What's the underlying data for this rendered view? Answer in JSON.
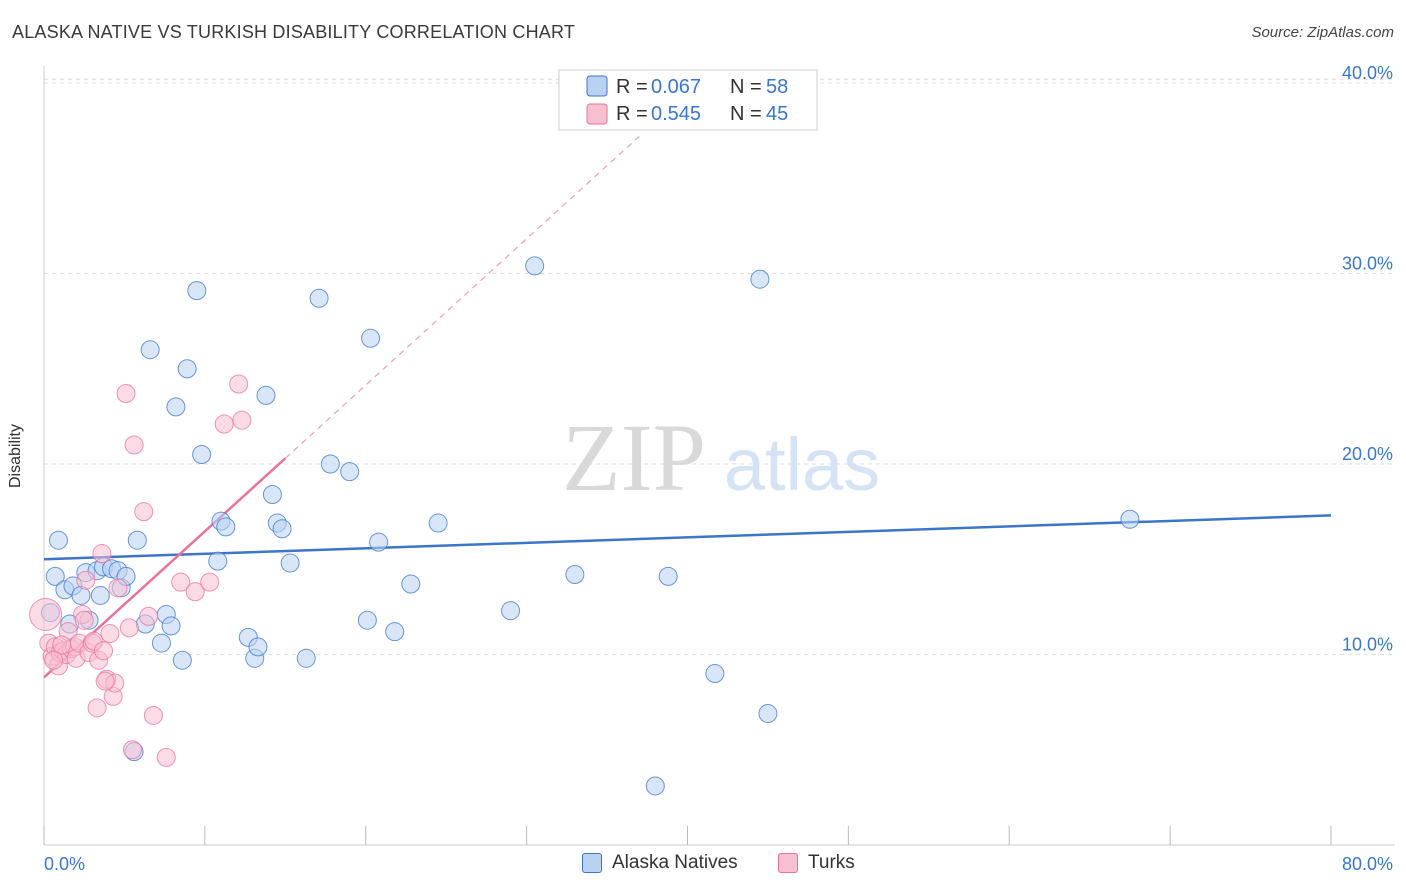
{
  "title": "ALASKA NATIVE VS TURKISH DISABILITY CORRELATION CHART",
  "source": "Source: ZipAtlas.com",
  "watermark": {
    "zip": "ZIP",
    "atlas": "atlas"
  },
  "colors": {
    "blue": "#3b76c9",
    "blue_fill": "#b9d2f2",
    "pink": "#e8729c",
    "pink_fill": "#f7c0d1"
  },
  "legend": {
    "rows": [
      {
        "r_label": "R = ",
        "r_value": "0.067",
        "n_label": "N = ",
        "n_value": "58"
      },
      {
        "r_label": "R = ",
        "r_value": "0.545",
        "n_label": "N = ",
        "n_value": "45"
      }
    ]
  },
  "bottom_legend": [
    "Alaska Natives",
    "Turks"
  ],
  "chart_data": {
    "type": "scatter",
    "title": "ALASKA NATIVE VS TURKISH DISABILITY CORRELATION CHART",
    "xlabel": "",
    "ylabel": "Disability",
    "xlim": [
      0,
      80
    ],
    "ylim": [
      0,
      40
    ],
    "x_tick_labels": [
      "0.0%",
      "80.0%"
    ],
    "y_tick_labels": [
      {
        "value": 10,
        "label": "10.0%"
      },
      {
        "value": 20,
        "label": "20.0%"
      },
      {
        "value": 30,
        "label": "30.0%"
      },
      {
        "value": 40,
        "label": "40.0%"
      }
    ],
    "series": [
      {
        "name": "Alaska Natives",
        "color": "#3b76c9",
        "r": 0.067,
        "n": 58,
        "trend": {
          "x0": 0,
          "y0": 15.0,
          "x1": 80,
          "y1": 17.3,
          "style": "solid"
        },
        "points": [
          [
            0.4,
            12.2
          ],
          [
            0.7,
            14.1
          ],
          [
            0.9,
            16.0
          ],
          [
            1.3,
            13.4
          ],
          [
            1.6,
            11.6
          ],
          [
            1.8,
            13.6
          ],
          [
            2.3,
            13.1
          ],
          [
            2.6,
            14.3
          ],
          [
            2.8,
            11.8
          ],
          [
            3.3,
            14.4
          ],
          [
            3.5,
            13.1
          ],
          [
            3.7,
            14.6
          ],
          [
            4.2,
            14.5
          ],
          [
            4.6,
            14.4
          ],
          [
            4.8,
            13.5
          ],
          [
            5.1,
            14.1
          ],
          [
            5.6,
            4.9
          ],
          [
            5.8,
            16.0
          ],
          [
            6.3,
            11.6
          ],
          [
            6.6,
            26.0
          ],
          [
            7.3,
            10.6
          ],
          [
            7.6,
            12.1
          ],
          [
            7.9,
            11.5
          ],
          [
            8.2,
            23.0
          ],
          [
            8.6,
            9.7
          ],
          [
            8.9,
            25.0
          ],
          [
            9.5,
            29.1
          ],
          [
            9.8,
            20.5
          ],
          [
            10.8,
            14.9
          ],
          [
            11.0,
            17.0
          ],
          [
            11.3,
            16.7
          ],
          [
            12.7,
            10.9
          ],
          [
            13.1,
            9.8
          ],
          [
            13.3,
            10.4
          ],
          [
            13.8,
            23.6
          ],
          [
            14.2,
            18.4
          ],
          [
            14.5,
            16.9
          ],
          [
            14.8,
            16.6
          ],
          [
            15.3,
            14.8
          ],
          [
            16.3,
            9.8
          ],
          [
            17.1,
            28.7
          ],
          [
            17.8,
            20.0
          ],
          [
            19.0,
            19.6
          ],
          [
            20.1,
            11.8
          ],
          [
            20.3,
            26.6
          ],
          [
            20.8,
            15.9
          ],
          [
            21.8,
            11.2
          ],
          [
            22.8,
            13.7
          ],
          [
            24.5,
            16.9
          ],
          [
            29.0,
            12.3
          ],
          [
            30.5,
            30.4
          ],
          [
            33.0,
            14.2
          ],
          [
            38.0,
            3.1
          ],
          [
            38.8,
            14.1
          ],
          [
            41.7,
            9.0
          ],
          [
            44.5,
            29.7
          ],
          [
            45.0,
            6.9
          ],
          [
            67.5,
            17.1
          ]
        ]
      },
      {
        "name": "Turks",
        "color": "#e8729c",
        "r": 0.545,
        "n": 45,
        "trend": {
          "x0": 0,
          "y0": 8.8,
          "x1": 15.0,
          "y1": 20.3,
          "style": "solid",
          "dash_x1": 37.0,
          "dash_y1": 37.2
        },
        "points": [
          [
            0.1,
            12.1
          ],
          [
            0.3,
            10.6
          ],
          [
            0.5,
            9.9
          ],
          [
            0.7,
            10.4
          ],
          [
            0.9,
            9.4
          ],
          [
            1.0,
            10.1
          ],
          [
            1.2,
            10.2
          ],
          [
            1.4,
            10.0
          ],
          [
            1.5,
            11.2
          ],
          [
            1.7,
            10.3
          ],
          [
            1.9,
            10.4
          ],
          [
            2.0,
            9.8
          ],
          [
            2.2,
            10.6
          ],
          [
            2.4,
            12.1
          ],
          [
            2.6,
            13.9
          ],
          [
            2.8,
            10.1
          ],
          [
            3.0,
            10.6
          ],
          [
            3.1,
            10.7
          ],
          [
            3.3,
            7.2
          ],
          [
            3.4,
            9.7
          ],
          [
            3.6,
            15.3
          ],
          [
            3.7,
            10.2
          ],
          [
            3.9,
            8.7
          ],
          [
            4.1,
            11.1
          ],
          [
            4.3,
            7.8
          ],
          [
            4.4,
            8.5
          ],
          [
            4.6,
            13.5
          ],
          [
            5.1,
            23.7
          ],
          [
            5.3,
            11.4
          ],
          [
            5.5,
            5.0
          ],
          [
            5.6,
            21.0
          ],
          [
            6.2,
            17.5
          ],
          [
            6.5,
            12.0
          ],
          [
            6.8,
            6.8
          ],
          [
            7.6,
            4.6
          ],
          [
            8.5,
            13.8
          ],
          [
            9.4,
            13.3
          ],
          [
            10.3,
            13.8
          ],
          [
            11.2,
            22.1
          ],
          [
            12.1,
            24.2
          ],
          [
            12.3,
            22.3
          ],
          [
            2.5,
            11.8
          ],
          [
            1.1,
            10.5
          ],
          [
            0.6,
            9.7
          ],
          [
            3.8,
            8.6
          ]
        ]
      }
    ]
  }
}
